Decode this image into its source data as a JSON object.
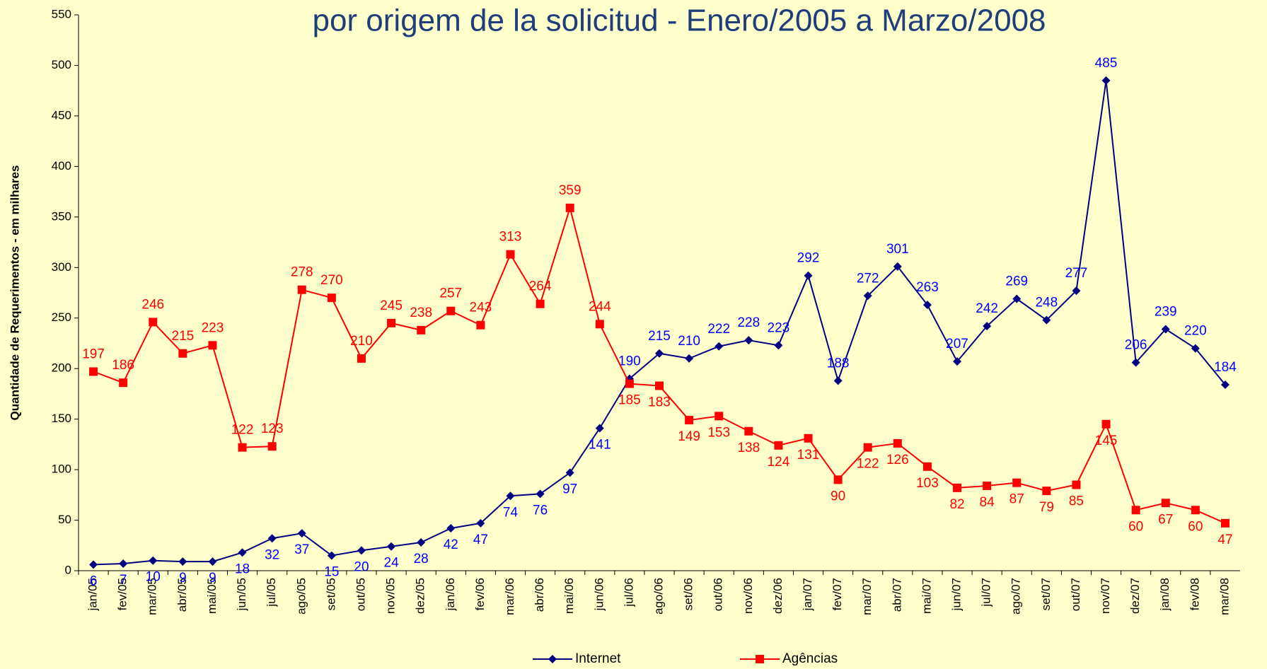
{
  "chart_data": {
    "type": "line",
    "title": "por origem de la solicitud - Enero/2005 a Marzo/2008",
    "y_label": "Quantidade de Requerimentos - em milhares",
    "categories": [
      "jan/05",
      "fev/05",
      "mar/05",
      "abr/05",
      "mai/05",
      "jun/05",
      "jul/05",
      "ago/05",
      "set/05",
      "out/05",
      "nov/05",
      "dez/05",
      "jan/06",
      "fev/06",
      "mar/06",
      "abr/06",
      "mai/06",
      "jun/06",
      "jul/06",
      "ago/06",
      "set/06",
      "out/06",
      "nov/06",
      "dez/06",
      "jan/07",
      "fev/07",
      "mar/07",
      "abr/07",
      "mai/07",
      "jun/07",
      "jul/07",
      "ago/07",
      "set/07",
      "out/07",
      "nov/07",
      "dez/07",
      "jan/08",
      "fev/08",
      "mar/08"
    ],
    "series": [
      {
        "name": "Internet",
        "color": "#000080",
        "label_color": "#0000ff",
        "marker": "diamond",
        "values": [
          6,
          7,
          10,
          9,
          9,
          18,
          32,
          37,
          15,
          20,
          24,
          28,
          42,
          47,
          74,
          76,
          97,
          141,
          190,
          215,
          210,
          222,
          228,
          223,
          292,
          188,
          272,
          301,
          263,
          207,
          242,
          269,
          248,
          277,
          485,
          206,
          239,
          220,
          184
        ]
      },
      {
        "name": "Agências",
        "color": "#ff0000",
        "label_color": "#ff0000",
        "marker": "square",
        "values": [
          197,
          186,
          246,
          215,
          223,
          122,
          123,
          278,
          270,
          210,
          245,
          238,
          257,
          243,
          313,
          264,
          359,
          244,
          185,
          183,
          149,
          153,
          138,
          124,
          131,
          90,
          122,
          126,
          103,
          82,
          84,
          87,
          79,
          85,
          145,
          60,
          67,
          60,
          47
        ]
      }
    ],
    "ylim": [
      0,
      550
    ],
    "yticks": [
      0,
      50,
      100,
      150,
      200,
      250,
      300,
      350,
      400,
      450,
      500,
      550
    ]
  }
}
